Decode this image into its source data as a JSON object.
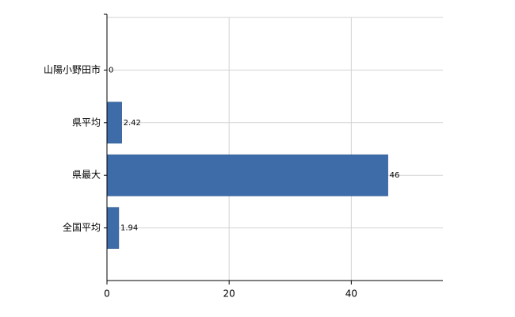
{
  "chart_data": {
    "type": "bar",
    "orientation": "horizontal",
    "categories": [
      "山陽小野田市",
      "県平均",
      "県最大",
      "全国平均"
    ],
    "values": [
      0,
      2.42,
      46,
      1.94
    ],
    "color": "#3d6ca8",
    "xlim": [
      0,
      55
    ],
    "xticks": [
      0,
      20,
      40
    ],
    "grid": true
  }
}
